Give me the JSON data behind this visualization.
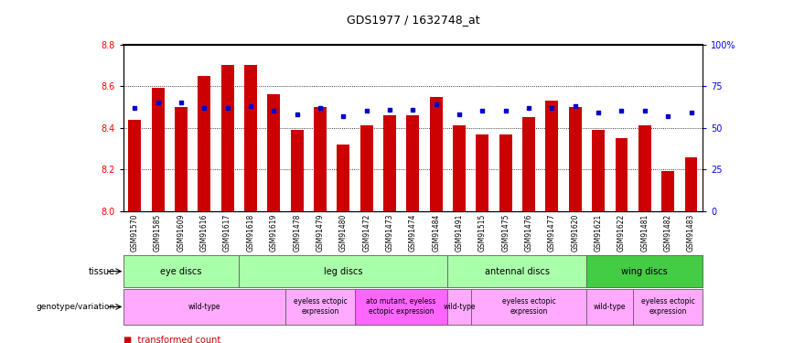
{
  "title": "GDS1977 / 1632748_at",
  "samples": [
    "GSM91570",
    "GSM91585",
    "GSM91609",
    "GSM91616",
    "GSM91617",
    "GSM91618",
    "GSM91619",
    "GSM91478",
    "GSM91479",
    "GSM91480",
    "GSM91472",
    "GSM91473",
    "GSM91474",
    "GSM91484",
    "GSM91491",
    "GSM91515",
    "GSM91475",
    "GSM91476",
    "GSM91477",
    "GSM91620",
    "GSM91621",
    "GSM91622",
    "GSM91481",
    "GSM91482",
    "GSM91483"
  ],
  "bar_values": [
    8.44,
    8.59,
    8.5,
    8.65,
    8.7,
    8.7,
    8.56,
    8.39,
    8.5,
    8.32,
    8.41,
    8.46,
    8.46,
    8.55,
    8.41,
    8.37,
    8.37,
    8.45,
    8.53,
    8.5,
    8.39,
    8.35,
    8.41,
    8.19,
    8.26
  ],
  "percentile_values": [
    62,
    65,
    65,
    62,
    62,
    63,
    60,
    58,
    62,
    57,
    60,
    61,
    61,
    64,
    58,
    60,
    60,
    62,
    62,
    63,
    59,
    60,
    60,
    57,
    59
  ],
  "ylim_left": [
    8.0,
    8.8
  ],
  "ylim_right": [
    0,
    100
  ],
  "bar_color": "#cc0000",
  "dot_color": "#0000cc",
  "tissue_groups": [
    {
      "label": "eye discs",
      "start": 0,
      "end": 4,
      "color": "#aaffaa"
    },
    {
      "label": "leg discs",
      "start": 5,
      "end": 13,
      "color": "#aaffaa"
    },
    {
      "label": "antennal discs",
      "start": 14,
      "end": 19,
      "color": "#aaffaa"
    },
    {
      "label": "wing discs",
      "start": 20,
      "end": 24,
      "color": "#44cc44"
    }
  ],
  "genotype_groups": [
    {
      "label": "wild-type",
      "start": 0,
      "end": 6,
      "color": "#ffaaff"
    },
    {
      "label": "eyeless ectopic\nexpression",
      "start": 7,
      "end": 9,
      "color": "#ffaaff"
    },
    {
      "label": "ato mutant, eyeless\nectopic expression",
      "start": 10,
      "end": 13,
      "color": "#ff66ff"
    },
    {
      "label": "wild-type",
      "start": 14,
      "end": 14,
      "color": "#ffaaff"
    },
    {
      "label": "eyeless ectopic\nexpression",
      "start": 15,
      "end": 19,
      "color": "#ffaaff"
    },
    {
      "label": "wild-type",
      "start": 20,
      "end": 21,
      "color": "#ffaaff"
    },
    {
      "label": "eyeless ectopic\nexpression",
      "start": 22,
      "end": 24,
      "color": "#ffaaff"
    }
  ]
}
